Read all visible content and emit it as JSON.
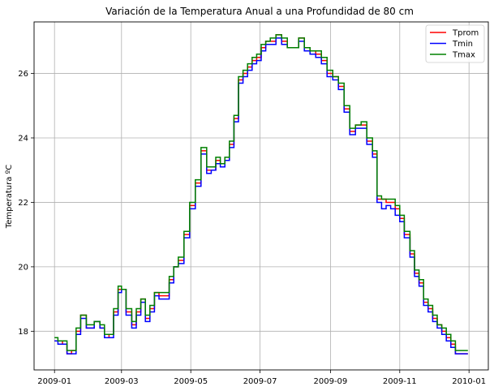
{
  "chart_data": {
    "type": "line",
    "title": "Variación de la Temperatura Anual a una Profundidad de 80 cm",
    "xlabel": "",
    "ylabel": "Temperatura ºC",
    "xlim": [
      "2008-12-14",
      "2010-01-18"
    ],
    "ylim": [
      16.8,
      27.6
    ],
    "grid": true,
    "legend_position": "top-right",
    "x_ticks": [
      "2009-01-01",
      "2009-03-01",
      "2009-05-01",
      "2009-07-01",
      "2009-09-01",
      "2009-11-01",
      "2010-01-01"
    ],
    "x_tick_labels": [
      "2009-01",
      "2009-03",
      "2009-05",
      "2009-07",
      "2009-09",
      "2009-11",
      "2010-01"
    ],
    "y_ticks": [
      18,
      20,
      22,
      24,
      26
    ],
    "y_tick_labels": [
      "18",
      "20",
      "22",
      "24",
      "26"
    ],
    "x": [
      "2009-01-01",
      "2009-01-04",
      "2009-01-08",
      "2009-01-12",
      "2009-01-16",
      "2009-01-20",
      "2009-01-24",
      "2009-01-29",
      "2009-02-01",
      "2009-02-05",
      "2009-02-10",
      "2009-02-14",
      "2009-02-18",
      "2009-02-22",
      "2009-02-26",
      "2009-03-01",
      "2009-03-05",
      "2009-03-10",
      "2009-03-14",
      "2009-03-18",
      "2009-03-22",
      "2009-03-26",
      "2009-03-30",
      "2009-04-03",
      "2009-04-07",
      "2009-04-12",
      "2009-04-16",
      "2009-04-20",
      "2009-04-25",
      "2009-04-30",
      "2009-05-05",
      "2009-05-10",
      "2009-05-15",
      "2009-05-19",
      "2009-05-23",
      "2009-05-27",
      "2009-05-31",
      "2009-06-04",
      "2009-06-08",
      "2009-06-12",
      "2009-06-16",
      "2009-06-20",
      "2009-06-24",
      "2009-06-28",
      "2009-07-02",
      "2009-07-06",
      "2009-07-10",
      "2009-07-15",
      "2009-07-20",
      "2009-07-25",
      "2009-07-30",
      "2009-08-04",
      "2009-08-09",
      "2009-08-14",
      "2009-08-19",
      "2009-08-24",
      "2009-08-29",
      "2009-09-03",
      "2009-09-08",
      "2009-09-13",
      "2009-09-18",
      "2009-09-23",
      "2009-09-28",
      "2009-10-03",
      "2009-10-08",
      "2009-10-12",
      "2009-10-16",
      "2009-10-20",
      "2009-10-24",
      "2009-10-28",
      "2009-11-01",
      "2009-11-05",
      "2009-11-10",
      "2009-11-14",
      "2009-11-18",
      "2009-11-22",
      "2009-11-26",
      "2009-11-30",
      "2009-12-04",
      "2009-12-08",
      "2009-12-12",
      "2009-12-16",
      "2009-12-20",
      "2009-12-24",
      "2009-12-28",
      "2009-12-31"
    ],
    "series": [
      {
        "name": "Tprom",
        "color": "#ff0000",
        "values": [
          17.7,
          17.7,
          17.6,
          17.3,
          17.4,
          18.0,
          18.5,
          18.1,
          18.1,
          18.3,
          18.1,
          17.8,
          17.9,
          18.6,
          19.3,
          19.3,
          18.6,
          18.2,
          18.6,
          19.0,
          18.4,
          18.7,
          19.2,
          19.1,
          19.1,
          19.6,
          20.0,
          20.2,
          21.0,
          21.9,
          22.6,
          23.6,
          23.0,
          23.0,
          23.3,
          23.2,
          23.3,
          23.8,
          24.6,
          25.8,
          26.0,
          26.2,
          26.4,
          26.5,
          26.8,
          27.0,
          27.0,
          27.2,
          27.0,
          26.8,
          26.8,
          27.1,
          26.8,
          26.7,
          26.6,
          26.4,
          26.0,
          25.9,
          25.6,
          24.9,
          24.2,
          24.4,
          24.4,
          23.9,
          23.5,
          22.1,
          22.1,
          22.0,
          22.0,
          21.8,
          21.5,
          21.0,
          20.4,
          19.8,
          19.5,
          18.9,
          18.7,
          18.4,
          18.2,
          18.0,
          17.8,
          17.6,
          17.3,
          17.3,
          17.3,
          17.3
        ]
      },
      {
        "name": "Tmin",
        "color": "#0000ff",
        "values": [
          17.7,
          17.6,
          17.6,
          17.3,
          17.3,
          17.9,
          18.4,
          18.1,
          18.1,
          18.3,
          18.1,
          17.8,
          17.8,
          18.5,
          19.2,
          19.3,
          18.5,
          18.1,
          18.5,
          18.9,
          18.3,
          18.6,
          19.1,
          19.0,
          19.0,
          19.5,
          20.0,
          20.1,
          20.9,
          21.8,
          22.5,
          23.5,
          22.9,
          23.0,
          23.2,
          23.1,
          23.3,
          23.7,
          24.5,
          25.7,
          25.9,
          26.1,
          26.3,
          26.4,
          26.7,
          26.9,
          26.9,
          27.1,
          26.9,
          26.8,
          26.8,
          27.0,
          26.7,
          26.6,
          26.5,
          26.3,
          25.9,
          25.8,
          25.5,
          24.8,
          24.1,
          24.3,
          24.3,
          23.8,
          23.4,
          22.0,
          21.8,
          21.9,
          21.8,
          21.6,
          21.4,
          20.9,
          20.3,
          19.7,
          19.4,
          18.8,
          18.6,
          18.3,
          18.1,
          17.9,
          17.7,
          17.5,
          17.3,
          17.3,
          17.3,
          17.3
        ]
      },
      {
        "name": "Tmax",
        "color": "#008000",
        "values": [
          17.8,
          17.7,
          17.7,
          17.4,
          17.4,
          18.1,
          18.5,
          18.2,
          18.2,
          18.3,
          18.2,
          17.9,
          17.9,
          18.7,
          19.4,
          19.3,
          18.7,
          18.3,
          18.7,
          19.0,
          18.5,
          18.8,
          19.2,
          19.2,
          19.2,
          19.7,
          20.0,
          20.3,
          21.1,
          22.0,
          22.7,
          23.7,
          23.1,
          23.1,
          23.4,
          23.2,
          23.4,
          23.9,
          24.7,
          25.9,
          26.1,
          26.3,
          26.5,
          26.6,
          26.9,
          27.0,
          27.1,
          27.2,
          27.1,
          26.8,
          26.8,
          27.1,
          26.8,
          26.7,
          26.7,
          26.5,
          26.1,
          25.9,
          25.7,
          25.0,
          24.3,
          24.4,
          24.5,
          24.0,
          23.6,
          22.2,
          22.1,
          22.1,
          22.1,
          21.9,
          21.6,
          21.1,
          20.5,
          19.9,
          19.6,
          19.0,
          18.8,
          18.5,
          18.2,
          18.1,
          17.9,
          17.7,
          17.4,
          17.4,
          17.4,
          17.4
        ]
      }
    ]
  }
}
